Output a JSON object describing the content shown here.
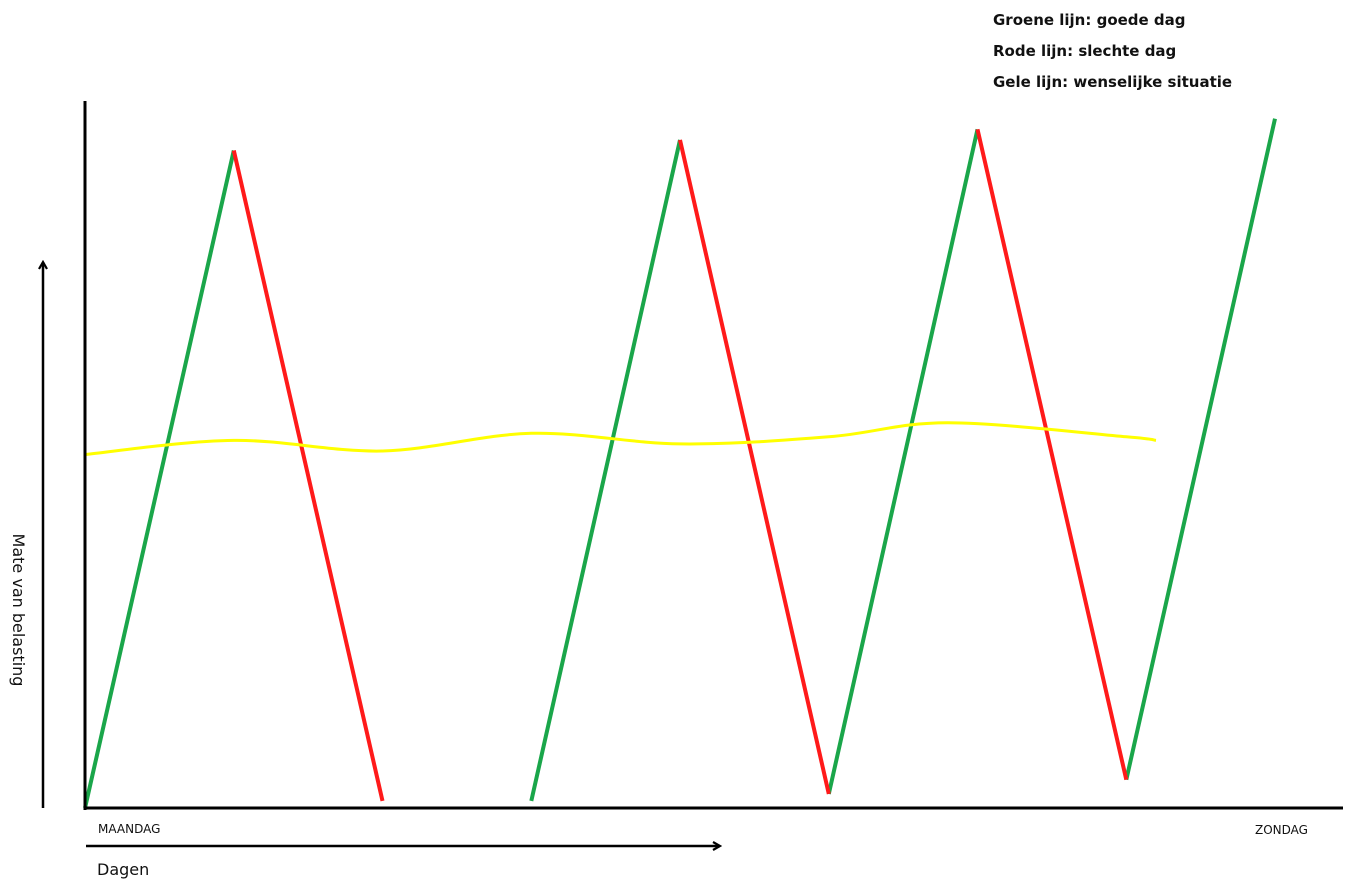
{
  "legend": {
    "green": "Groene lijn: goede dag",
    "red": "Rode lijn: slechte dag",
    "yellow": "Gele lijn: wenselijke situatie"
  },
  "y_axis_label": "Mate van belasting",
  "x_start_label": "MAANDAG",
  "x_end_label": "ZONDAG",
  "x_axis_label": "Dagen",
  "colors": {
    "good_day": "#1aa64a",
    "bad_day": "#ff1a1a",
    "desired": "#ffff00",
    "axis": "#000000"
  },
  "chart_data": {
    "type": "line",
    "series": [
      {
        "name": "Groene lijn: goede dag",
        "color": "#1aa64a",
        "segments": [
          [
            [
              0,
              0
            ],
            [
              0.5,
              0.93
            ]
          ],
          [
            [
              1.5,
              0.01
            ],
            [
              2.0,
              0.945
            ]
          ],
          [
            [
              2.5,
              0.02
            ],
            [
              3.0,
              0.96
            ]
          ],
          [
            [
              3.5,
              0.04
            ],
            [
              4.0,
              0.975
            ]
          ]
        ]
      },
      {
        "name": "Rode lijn: slechte dag",
        "color": "#ff1a1a",
        "segments": [
          [
            [
              0.5,
              0.93
            ],
            [
              1.0,
              0.01
            ]
          ],
          [
            [
              2.0,
              0.945
            ],
            [
              2.5,
              0.02
            ]
          ],
          [
            [
              3.0,
              0.96
            ],
            [
              3.5,
              0.04
            ]
          ]
        ]
      },
      {
        "name": "Gele lijn: wenselijke situatie",
        "color": "#ffff00",
        "points": [
          [
            0,
            0.5
          ],
          [
            0.5,
            0.52
          ],
          [
            1.0,
            0.505
          ],
          [
            1.5,
            0.53
          ],
          [
            2.0,
            0.515
          ],
          [
            2.5,
            0.525
          ],
          [
            2.9,
            0.545
          ],
          [
            3.5,
            0.525
          ],
          [
            3.6,
            0.52
          ]
        ]
      }
    ]
  }
}
